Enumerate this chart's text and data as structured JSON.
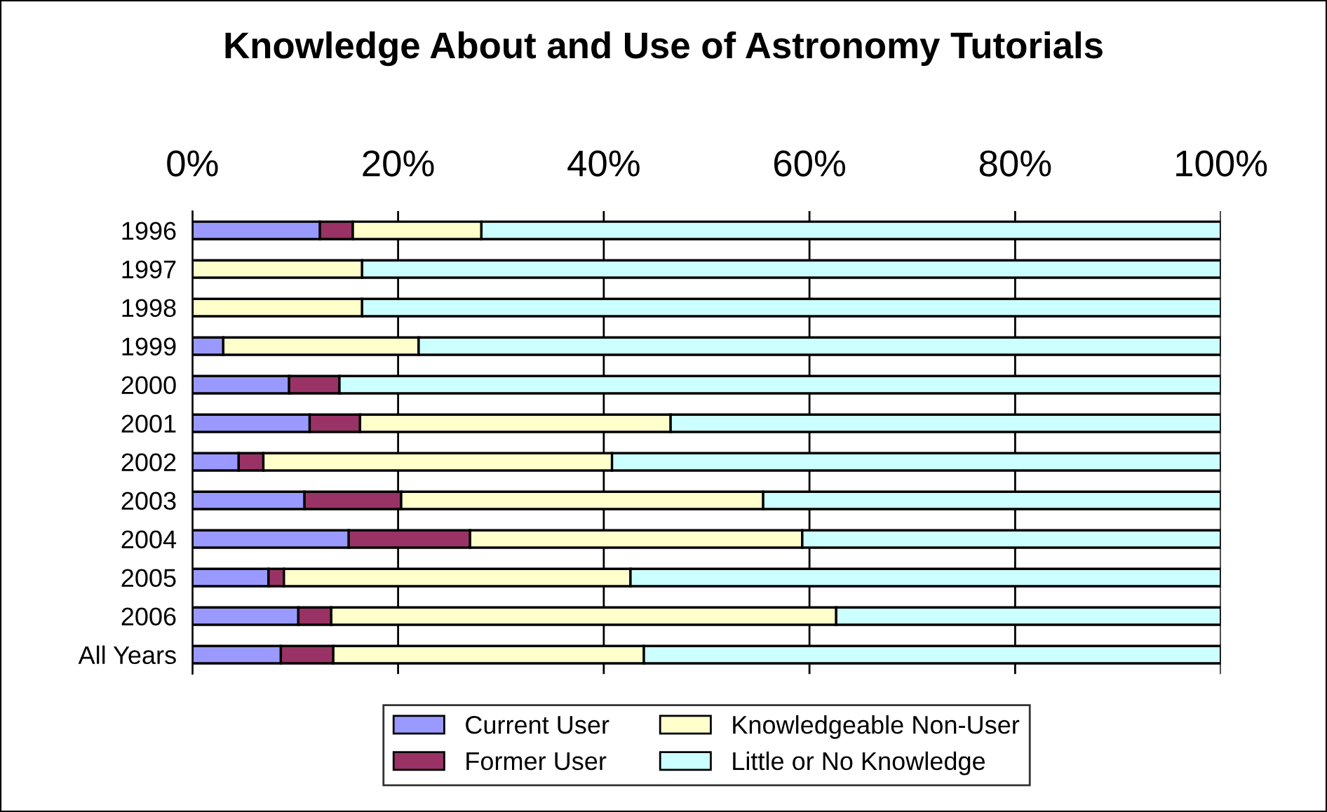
{
  "chart_data": {
    "type": "bar",
    "orientation": "horizontal",
    "stacked": true,
    "title": "Knowledge About and Use of Astronomy Tutorials",
    "categories": [
      "1996",
      "1997",
      "1998",
      "1999",
      "2000",
      "2001",
      "2002",
      "2003",
      "2004",
      "2005",
      "2006",
      "All Years"
    ],
    "series": [
      {
        "name": "Current User",
        "color": "#9999ff",
        "values": [
          12.4,
          null,
          null,
          3.0,
          9.4,
          11.4,
          4.5,
          10.9,
          15.2,
          7.4,
          10.3,
          8.6
        ]
      },
      {
        "name": "Former User",
        "color": "#993366",
        "values": [
          3.2,
          null,
          null,
          null,
          4.9,
          4.9,
          2.4,
          9.4,
          11.8,
          1.5,
          3.2,
          5.1
        ]
      },
      {
        "name": "Knowledgeable Non-User",
        "color": "#ffffcc",
        "values": [
          12.5,
          16.5,
          16.5,
          19.0,
          null,
          30.2,
          33.9,
          35.2,
          32.3,
          33.7,
          49.1,
          30.2
        ]
      },
      {
        "name": "Little or No Knowledge",
        "color": "#ccffff",
        "values": [
          71.9,
          83.5,
          83.5,
          78.0,
          85.7,
          53.5,
          59.2,
          44.5,
          40.7,
          57.4,
          37.4,
          56.1
        ]
      }
    ],
    "xlim": [
      0,
      100
    ],
    "xticks": [
      {
        "value": 0,
        "label": "0%"
      },
      {
        "value": 20,
        "label": "20%"
      },
      {
        "value": 40,
        "label": "40%"
      },
      {
        "value": 60,
        "label": "60%"
      },
      {
        "value": 80,
        "label": "80%"
      },
      {
        "value": 100,
        "label": "100%"
      }
    ],
    "grid": "x",
    "legend": "bottom"
  }
}
